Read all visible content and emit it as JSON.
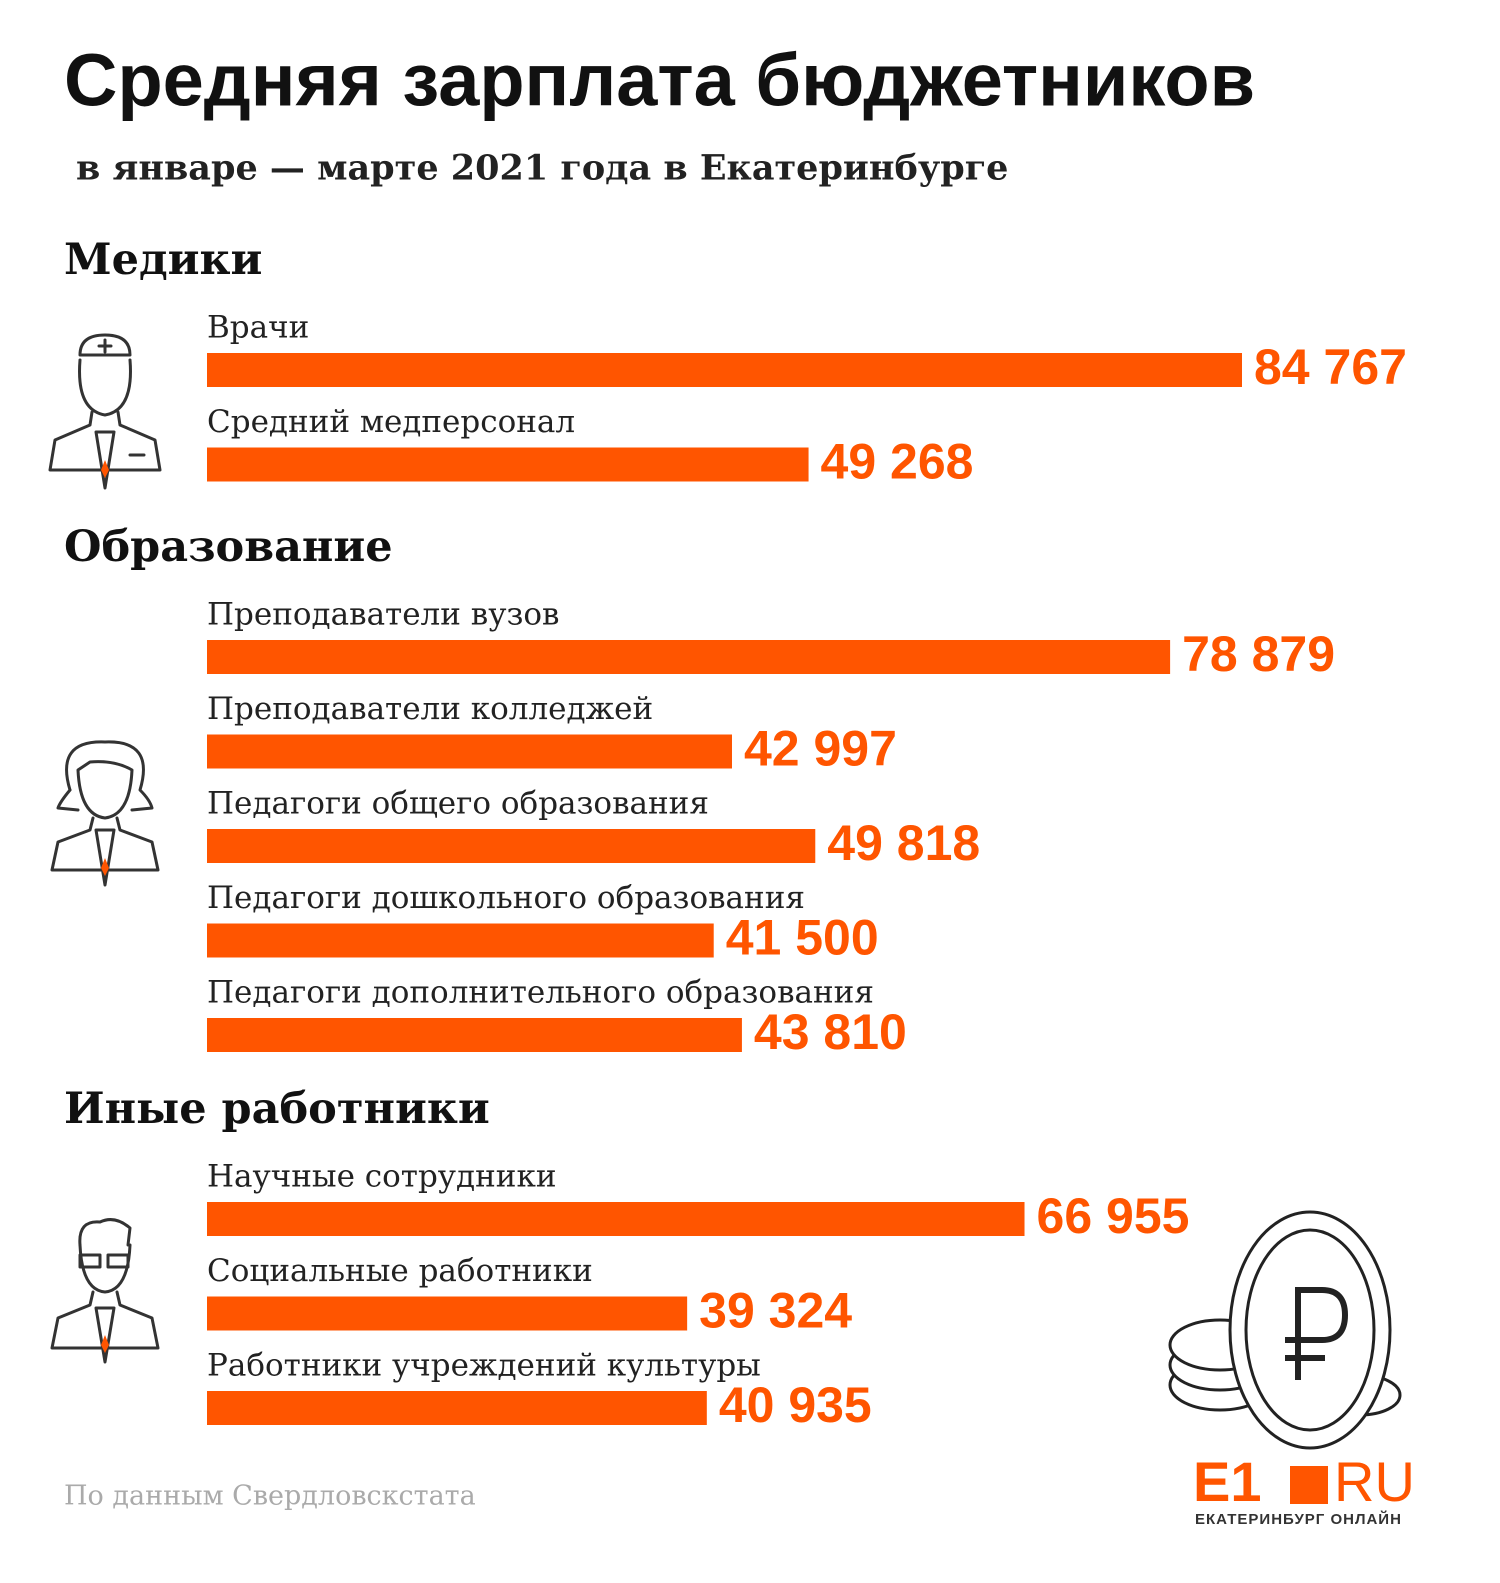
{
  "chart_data": {
    "type": "bar",
    "title": "Средняя зарплата бюджетников",
    "subtitle": "в январе — марте 2021 года в Екатеринбурге",
    "color": "#ff5500",
    "groups": [
      {
        "name": "Медики",
        "categories": [
          "Врачи",
          "Средний медперсонал"
        ],
        "values": [
          84767,
          49268
        ],
        "value_labels": [
          "84 767",
          "49 268"
        ]
      },
      {
        "name": "Образование",
        "categories": [
          "Преподаватели вузов",
          "Преподаватели колледжей",
          "Педагоги общего образования",
          "Педагоги дошкольного образования",
          "Педагоги дополнительного образования"
        ],
        "values": [
          78879,
          42997,
          49818,
          41500,
          43810
        ],
        "value_labels": [
          "78 879",
          "42 997",
          "49 818",
          "41 500",
          "43 810"
        ]
      },
      {
        "name": "Иные работники",
        "categories": [
          "Научные сотрудники",
          "Социальные работники",
          "Работники учреждений культуры"
        ],
        "values": [
          66955,
          39324,
          40935
        ],
        "value_labels": [
          "66 955",
          "39 324",
          "40 935"
        ]
      }
    ],
    "source": "По данным Свердловскстата",
    "logo": {
      "text": "E1",
      "suffix": "RU",
      "tagline": "ЕКАТЕРИНБУРГ ОНЛАЙН"
    }
  }
}
